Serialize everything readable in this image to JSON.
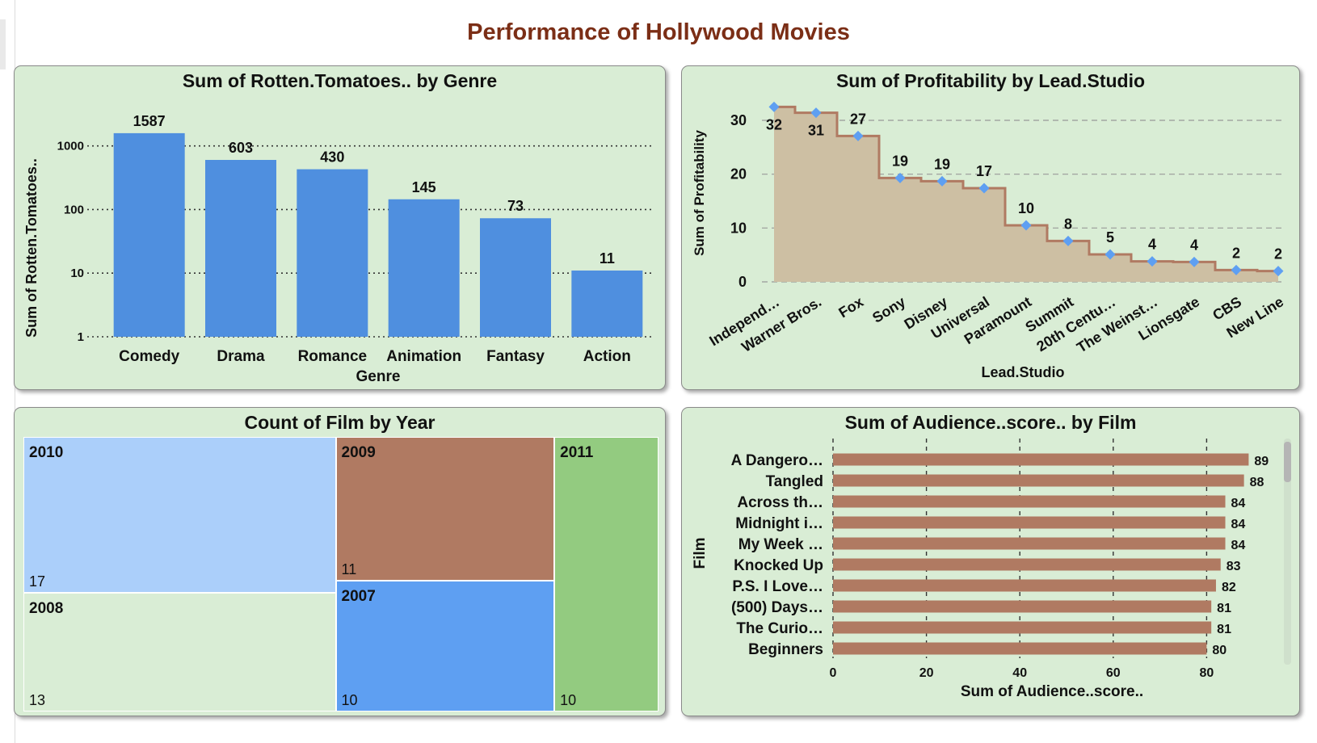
{
  "dashboard": {
    "title": "Performance of Hollywood Movies"
  },
  "colors": {
    "blue_bar": "#4f8fdf",
    "brown": "#b07a62",
    "marker": "#5e9ff2",
    "panel_bg": "#d9edd5",
    "area_fill": "#cdbfa3"
  },
  "chart_data": [
    {
      "type": "bar",
      "title": "Sum of Rotten.Tomatoes.. by Genre",
      "xlabel": "Genre",
      "ylabel": "Sum of Rotten.Tomatoes..",
      "scale": "log",
      "ylim": [
        1,
        2000
      ],
      "yticks": [
        "1",
        "10",
        "100",
        "1000"
      ],
      "categories": [
        "Comedy",
        "Drama",
        "Romance",
        "Animation",
        "Fantasy",
        "Action"
      ],
      "values": [
        1587,
        603,
        430,
        145,
        73,
        11
      ],
      "value_labels": [
        "1587",
        "603",
        "430",
        "145",
        "73",
        "11"
      ],
      "grid": true
    },
    {
      "type": "area",
      "title": "Sum of Profitability by Lead.Studio",
      "xlabel": "Lead.Studio",
      "ylabel": "Sum of Profitability",
      "ylim": [
        0,
        33
      ],
      "yticks": [
        "0",
        "10",
        "20",
        "30"
      ],
      "categories": [
        "Independ…",
        "Warner Bros.",
        "Fox",
        "Sony",
        "Disney",
        "Universal",
        "Paramount",
        "Summit",
        "20th Centu…",
        "The Weinst…",
        "Lionsgate",
        "CBS",
        "New Line"
      ],
      "values": [
        32.5,
        31.4,
        27.1,
        19.3,
        18.7,
        17.4,
        10.5,
        7.6,
        5.1,
        3.8,
        3.7,
        2.2,
        2.0
      ],
      "value_labels": [
        "32",
        "31",
        "27",
        "19",
        "19",
        "17",
        "10",
        "8",
        "5",
        "4",
        "4",
        "2",
        "2"
      ],
      "grid": true
    },
    {
      "type": "treemap",
      "title": "Count of Film by Year",
      "categories": [
        "2010",
        "2008",
        "2009",
        "2007",
        "2011"
      ],
      "values": [
        17,
        13,
        11,
        10,
        10
      ],
      "value_labels": [
        "17",
        "13",
        "11",
        "10",
        "10"
      ],
      "colors": [
        "#abcffa",
        "#d9edd5",
        "#b07a62",
        "#5e9ff2",
        "#93cb80"
      ]
    },
    {
      "type": "bar",
      "orientation": "horizontal",
      "title": "Sum of Audience..score.. by Film",
      "xlabel": "Sum of Audience..score..",
      "ylabel": "Film",
      "xlim": [
        0,
        90
      ],
      "xticks": [
        "0",
        "20",
        "40",
        "60",
        "80"
      ],
      "categories": [
        "A Dangero…",
        "Tangled",
        "Across th…",
        "Midnight i…",
        "My Week …",
        "Knocked Up",
        "P.S. I Love…",
        "(500) Days…",
        "The Curio…",
        "Beginners"
      ],
      "values": [
        89,
        88,
        84,
        84,
        84,
        83,
        82,
        81,
        81,
        80
      ],
      "value_labels": [
        "89",
        "88",
        "84",
        "84",
        "84",
        "83",
        "82",
        "81",
        "81",
        "80"
      ],
      "grid": true
    }
  ]
}
